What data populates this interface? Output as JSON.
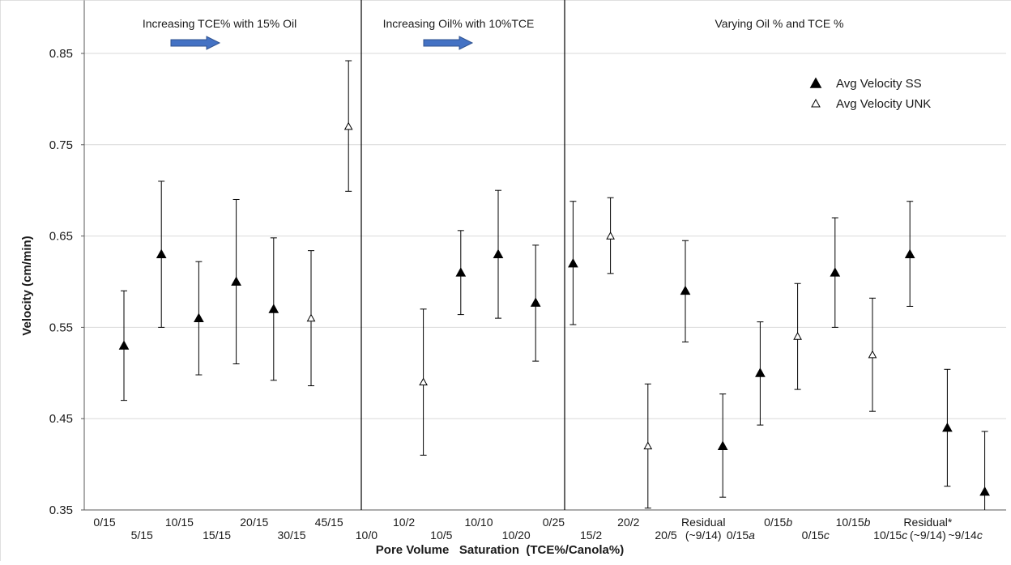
{
  "chart_data": {
    "type": "scatter",
    "ylabel": "Velocity (cm/min)",
    "xlabel": "Pore Volume   Saturation  (TCE%/Canola%)",
    "ylim": [
      0.35,
      0.85
    ],
    "yticks": [
      "0.35",
      "0.45",
      "0.55",
      "0.65",
      "0.75",
      "0.85"
    ],
    "ytick_values": [
      0.35,
      0.45,
      0.55,
      0.65,
      0.75,
      0.85
    ],
    "grid": true,
    "legend_placement": "top-right",
    "colors": {
      "filled": "#000000",
      "open": "#ffffff",
      "grid": "#d9d9d9",
      "arrow": "#4472c4"
    },
    "sections": [
      {
        "label": "Increasing TCE% with 15% Oil",
        "arrow": true
      },
      {
        "label": "Increasing Oil% with 10%TCE",
        "arrow": true
      },
      {
        "label": "Varying Oil % and TCE %",
        "arrow": false
      }
    ],
    "categories": [
      {
        "label": "0/15",
        "row": 0
      },
      {
        "label": "5/15",
        "row": 1
      },
      {
        "label": "10/15",
        "row": 0
      },
      {
        "label": "15/15",
        "row": 1
      },
      {
        "label": "20/15",
        "row": 0
      },
      {
        "label": "30/15",
        "row": 1
      },
      {
        "label": "45/15",
        "row": 0
      },
      {
        "label": "10/0",
        "row": 1
      },
      {
        "label": "10/2",
        "row": 0
      },
      {
        "label": "10/5",
        "row": 1
      },
      {
        "label": "10/10",
        "row": 0
      },
      {
        "label": "10/20",
        "row": 1
      },
      {
        "label": "0/25",
        "row": 0
      },
      {
        "label": "15/2",
        "row": 1
      },
      {
        "label": "20/2",
        "row": 0
      },
      {
        "label": "20/5",
        "row": 1
      },
      {
        "label": "Residual",
        "label2": "(~9/14)",
        "row": 0
      },
      {
        "label": "0/15",
        "italic": "a",
        "row": 1
      },
      {
        "label": "0/15",
        "italic": "b",
        "row": 0
      },
      {
        "label": "0/15",
        "italic": "c",
        "row": 1
      },
      {
        "label": "10/15",
        "italic": "b",
        "row": 0
      },
      {
        "label": "10/15",
        "italic": "c",
        "row": 1
      },
      {
        "label": "Residual*",
        "label2": "(~9/14)",
        "row": 0
      },
      {
        "label": "~9/14",
        "italic": "c",
        "row": 1
      }
    ],
    "series": [
      {
        "name": "Avg Velocity SS",
        "marker": "filled-triangle",
        "points": [
          {
            "x": 0,
            "y": 0.53,
            "low": 0.47,
            "high": 0.59
          },
          {
            "x": 1,
            "y": 0.63,
            "low": 0.55,
            "high": 0.71
          },
          {
            "x": 2,
            "y": 0.56,
            "low": 0.498,
            "high": 0.622
          },
          {
            "x": 3,
            "y": 0.6,
            "low": 0.51,
            "high": 0.69
          },
          {
            "x": 4,
            "y": 0.57,
            "low": 0.492,
            "high": 0.648
          },
          {
            "x": 9,
            "y": 0.61,
            "low": 0.564,
            "high": 0.656
          },
          {
            "x": 10,
            "y": 0.63,
            "low": 0.56,
            "high": 0.7
          },
          {
            "x": 11,
            "y": 0.577,
            "low": 0.513,
            "high": 0.64
          },
          {
            "x": 12,
            "y": 0.62,
            "low": 0.553,
            "high": 0.688
          },
          {
            "x": 15,
            "y": 0.59,
            "low": 0.534,
            "high": 0.645
          },
          {
            "x": 16,
            "y": 0.42,
            "low": 0.364,
            "high": 0.477
          },
          {
            "x": 17,
            "y": 0.5,
            "low": 0.443,
            "high": 0.556
          },
          {
            "x": 19,
            "y": 0.61,
            "low": 0.55,
            "high": 0.67
          },
          {
            "x": 21,
            "y": 0.63,
            "low": 0.573,
            "high": 0.688
          },
          {
            "x": 22,
            "y": 0.44,
            "low": 0.376,
            "high": 0.504
          },
          {
            "x": 23,
            "y": 0.37,
            "low": 0.305,
            "high": 0.436
          }
        ]
      },
      {
        "name": "Avg Velocity UNK",
        "marker": "open-triangle",
        "points": [
          {
            "x": 5,
            "y": 0.56,
            "low": 0.486,
            "high": 0.634
          },
          {
            "x": 6,
            "y": 0.77,
            "low": 0.699,
            "high": 0.842
          },
          {
            "x": 8,
            "y": 0.49,
            "low": 0.41,
            "high": 0.57
          },
          {
            "x": 13,
            "y": 0.65,
            "low": 0.609,
            "high": 0.692
          },
          {
            "x": 14,
            "y": 0.42,
            "low": 0.352,
            "high": 0.488
          },
          {
            "x": 18,
            "y": 0.54,
            "low": 0.482,
            "high": 0.598
          },
          {
            "x": 20,
            "y": 0.52,
            "low": 0.458,
            "high": 0.582
          }
        ]
      }
    ]
  }
}
